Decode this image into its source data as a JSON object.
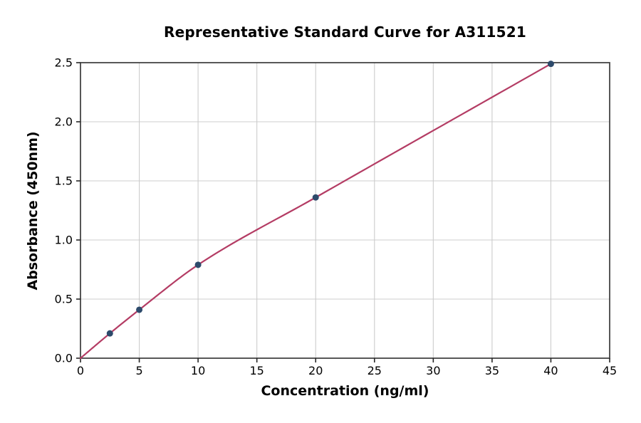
{
  "chart_data": {
    "type": "scatter",
    "title": "Representative Standard Curve for A311521",
    "xlabel": "Concentration (ng/ml)",
    "ylabel": "Absorbance (450nm)",
    "xlim": [
      0,
      45
    ],
    "ylim": [
      0,
      2.5
    ],
    "x_ticks": [
      0,
      5,
      10,
      15,
      20,
      25,
      30,
      35,
      40,
      45
    ],
    "x_tick_labels": [
      "0",
      "5",
      "10",
      "15",
      "20",
      "25",
      "30",
      "35",
      "40",
      "45"
    ],
    "y_ticks": [
      0,
      0.5,
      1,
      1.5,
      2,
      2.5
    ],
    "y_tick_labels": [
      "0.0",
      "0.5",
      "1.0",
      "1.5",
      "2.0",
      "2.5"
    ],
    "grid": true,
    "legend": "none",
    "series": [
      {
        "name": "fitted-curve",
        "type": "line",
        "x": [
          0,
          2.5,
          5,
          10,
          20,
          40
        ],
        "y": [
          0,
          0.21,
          0.41,
          0.79,
          1.36,
          2.49
        ],
        "color": "#b43c64"
      },
      {
        "name": "standard-points",
        "type": "scatter",
        "x": [
          2.5,
          5,
          10,
          20,
          40
        ],
        "y": [
          0.21,
          0.41,
          0.79,
          1.36,
          2.49
        ],
        "color": "#2d4a6b"
      }
    ],
    "colors": {
      "grid": "#cccccc",
      "spine": "#454545",
      "tick": "#262626",
      "text": "#000000",
      "background": "#ffffff"
    }
  }
}
